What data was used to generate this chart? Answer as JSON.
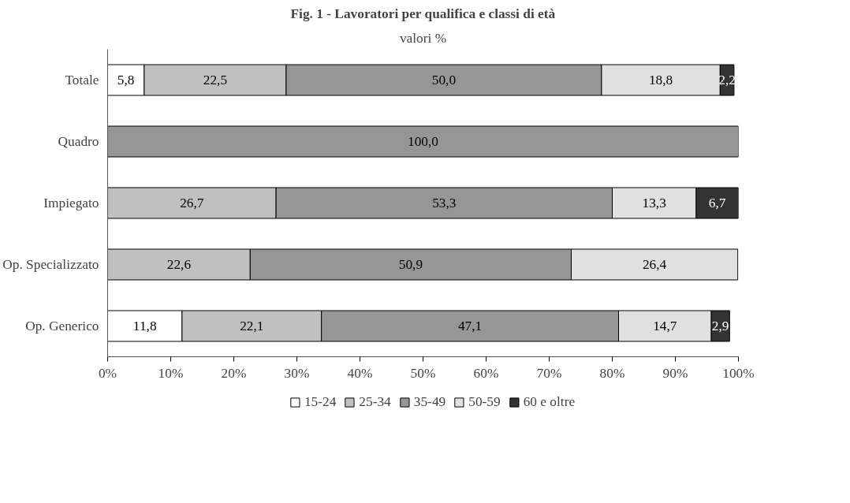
{
  "chart_data": {
    "type": "bar",
    "orientation": "horizontal",
    "stacked": true,
    "title": "Fig. 1 - Lavoratori per qualifica e classi di età",
    "subtitle": "valori %",
    "categories": [
      "Totale",
      "Quadro",
      "Impiegato",
      "Op. Specializzato",
      "Op. Generico"
    ],
    "series": [
      {
        "name": "15-24",
        "color": "#ffffff",
        "values": [
          5.8,
          null,
          null,
          null,
          11.8
        ],
        "value_labels": [
          "5,8",
          null,
          null,
          null,
          "11,8"
        ]
      },
      {
        "name": "25-34",
        "color": "#c0c0c0",
        "values": [
          22.5,
          null,
          26.7,
          22.6,
          22.1
        ],
        "value_labels": [
          "22,5",
          null,
          "26,7",
          "22,6",
          "22,1"
        ]
      },
      {
        "name": "35-49",
        "color": "#969696",
        "values": [
          50.0,
          100.0,
          53.3,
          50.9,
          47.1
        ],
        "value_labels": [
          "50,0",
          "100,0",
          "53,3",
          "50,9",
          "47,1"
        ]
      },
      {
        "name": "50-59",
        "color": "#e0e0e0",
        "values": [
          18.8,
          null,
          13.3,
          26.4,
          14.7
        ],
        "value_labels": [
          "18,8",
          null,
          "13,3",
          "26,4",
          "14,7"
        ]
      },
      {
        "name": "60 e oltre",
        "color": "#333333",
        "values": [
          2.2,
          null,
          6.7,
          null,
          2.9
        ],
        "value_labels": [
          "2,2",
          null,
          "6,7",
          null,
          "2,9"
        ]
      }
    ],
    "xlim": [
      0,
      100
    ],
    "xticks": [
      {
        "value": 0,
        "label": "0%"
      },
      {
        "value": 10,
        "label": "10%"
      },
      {
        "value": 20,
        "label": "20%"
      },
      {
        "value": 30,
        "label": "30%"
      },
      {
        "value": 40,
        "label": "40%"
      },
      {
        "value": 50,
        "label": "50%"
      },
      {
        "value": 60,
        "label": "60%"
      },
      {
        "value": 70,
        "label": "70%"
      },
      {
        "value": 80,
        "label": "80%"
      },
      {
        "value": 90,
        "label": "90%"
      },
      {
        "value": 100,
        "label": "100%"
      }
    ],
    "grid": false,
    "legend": "bottom"
  }
}
